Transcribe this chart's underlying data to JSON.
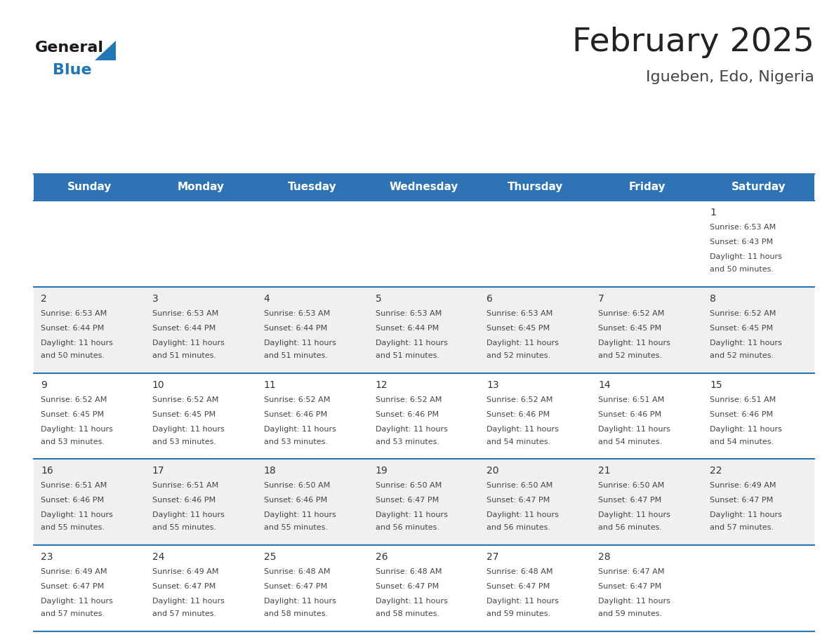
{
  "title": "February 2025",
  "subtitle": "Igueben, Edo, Nigeria",
  "header_bg": "#2E74B5",
  "header_text_color": "#FFFFFF",
  "day_names": [
    "Sunday",
    "Monday",
    "Tuesday",
    "Wednesday",
    "Thursday",
    "Friday",
    "Saturday"
  ],
  "weeks": [
    [
      {
        "day": null,
        "sunrise": null,
        "sunset": null,
        "daylight": null
      },
      {
        "day": null,
        "sunrise": null,
        "sunset": null,
        "daylight": null
      },
      {
        "day": null,
        "sunrise": null,
        "sunset": null,
        "daylight": null
      },
      {
        "day": null,
        "sunrise": null,
        "sunset": null,
        "daylight": null
      },
      {
        "day": null,
        "sunrise": null,
        "sunset": null,
        "daylight": null
      },
      {
        "day": null,
        "sunrise": null,
        "sunset": null,
        "daylight": null
      },
      {
        "day": 1,
        "sunrise": "6:53 AM",
        "sunset": "6:43 PM",
        "daylight": "11 hours and 50 minutes."
      }
    ],
    [
      {
        "day": 2,
        "sunrise": "6:53 AM",
        "sunset": "6:44 PM",
        "daylight": "11 hours and 50 minutes."
      },
      {
        "day": 3,
        "sunrise": "6:53 AM",
        "sunset": "6:44 PM",
        "daylight": "11 hours and 51 minutes."
      },
      {
        "day": 4,
        "sunrise": "6:53 AM",
        "sunset": "6:44 PM",
        "daylight": "11 hours and 51 minutes."
      },
      {
        "day": 5,
        "sunrise": "6:53 AM",
        "sunset": "6:44 PM",
        "daylight": "11 hours and 51 minutes."
      },
      {
        "day": 6,
        "sunrise": "6:53 AM",
        "sunset": "6:45 PM",
        "daylight": "11 hours and 52 minutes."
      },
      {
        "day": 7,
        "sunrise": "6:52 AM",
        "sunset": "6:45 PM",
        "daylight": "11 hours and 52 minutes."
      },
      {
        "day": 8,
        "sunrise": "6:52 AM",
        "sunset": "6:45 PM",
        "daylight": "11 hours and 52 minutes."
      }
    ],
    [
      {
        "day": 9,
        "sunrise": "6:52 AM",
        "sunset": "6:45 PM",
        "daylight": "11 hours and 53 minutes."
      },
      {
        "day": 10,
        "sunrise": "6:52 AM",
        "sunset": "6:45 PM",
        "daylight": "11 hours and 53 minutes."
      },
      {
        "day": 11,
        "sunrise": "6:52 AM",
        "sunset": "6:46 PM",
        "daylight": "11 hours and 53 minutes."
      },
      {
        "day": 12,
        "sunrise": "6:52 AM",
        "sunset": "6:46 PM",
        "daylight": "11 hours and 53 minutes."
      },
      {
        "day": 13,
        "sunrise": "6:52 AM",
        "sunset": "6:46 PM",
        "daylight": "11 hours and 54 minutes."
      },
      {
        "day": 14,
        "sunrise": "6:51 AM",
        "sunset": "6:46 PM",
        "daylight": "11 hours and 54 minutes."
      },
      {
        "day": 15,
        "sunrise": "6:51 AM",
        "sunset": "6:46 PM",
        "daylight": "11 hours and 54 minutes."
      }
    ],
    [
      {
        "day": 16,
        "sunrise": "6:51 AM",
        "sunset": "6:46 PM",
        "daylight": "11 hours and 55 minutes."
      },
      {
        "day": 17,
        "sunrise": "6:51 AM",
        "sunset": "6:46 PM",
        "daylight": "11 hours and 55 minutes."
      },
      {
        "day": 18,
        "sunrise": "6:50 AM",
        "sunset": "6:46 PM",
        "daylight": "11 hours and 55 minutes."
      },
      {
        "day": 19,
        "sunrise": "6:50 AM",
        "sunset": "6:47 PM",
        "daylight": "11 hours and 56 minutes."
      },
      {
        "day": 20,
        "sunrise": "6:50 AM",
        "sunset": "6:47 PM",
        "daylight": "11 hours and 56 minutes."
      },
      {
        "day": 21,
        "sunrise": "6:50 AM",
        "sunset": "6:47 PM",
        "daylight": "11 hours and 56 minutes."
      },
      {
        "day": 22,
        "sunrise": "6:49 AM",
        "sunset": "6:47 PM",
        "daylight": "11 hours and 57 minutes."
      }
    ],
    [
      {
        "day": 23,
        "sunrise": "6:49 AM",
        "sunset": "6:47 PM",
        "daylight": "11 hours and 57 minutes."
      },
      {
        "day": 24,
        "sunrise": "6:49 AM",
        "sunset": "6:47 PM",
        "daylight": "11 hours and 57 minutes."
      },
      {
        "day": 25,
        "sunrise": "6:48 AM",
        "sunset": "6:47 PM",
        "daylight": "11 hours and 58 minutes."
      },
      {
        "day": 26,
        "sunrise": "6:48 AM",
        "sunset": "6:47 PM",
        "daylight": "11 hours and 58 minutes."
      },
      {
        "day": 27,
        "sunrise": "6:48 AM",
        "sunset": "6:47 PM",
        "daylight": "11 hours and 59 minutes."
      },
      {
        "day": 28,
        "sunrise": "6:47 AM",
        "sunset": "6:47 PM",
        "daylight": "11 hours and 59 minutes."
      },
      {
        "day": null,
        "sunrise": null,
        "sunset": null,
        "daylight": null
      }
    ]
  ],
  "bg_color": "#FFFFFF",
  "row_alt_color": "#F0F0F0",
  "cell_text_color": "#444444",
  "day_num_color": "#333333",
  "border_color": "#2E74B5",
  "logo_general_color": "#1A1A1A",
  "logo_blue_color": "#2077B4",
  "title_color": "#222222",
  "subtitle_color": "#444444",
  "title_fontsize": 34,
  "subtitle_fontsize": 16,
  "header_fontsize": 11,
  "day_num_fontsize": 10,
  "cell_fontsize": 8
}
